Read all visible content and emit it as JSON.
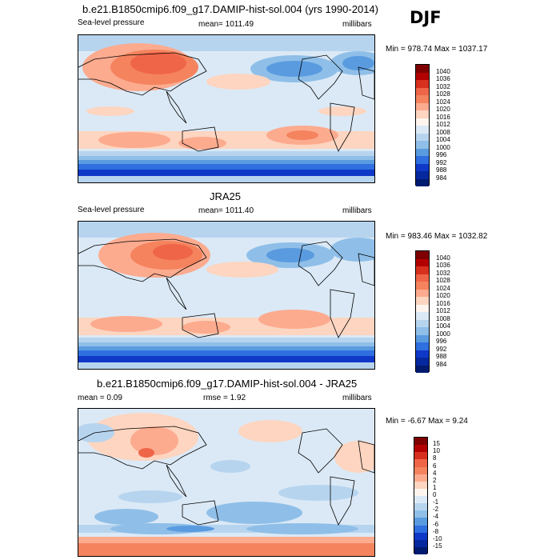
{
  "header": {
    "season": "DJF"
  },
  "panels": [
    {
      "title": "b.e21.B1850cmip6.f09_g17.DAMIP-hist-sol.004 (yrs 1990-2014)",
      "left": "Sea-level pressure",
      "center": "mean= 1011.49",
      "right": "millibars",
      "minmax": "Min = 978.74 Max = 1037.17",
      "colorbar": {
        "labels": [
          "1040",
          "1036",
          "1032",
          "1028",
          "1024",
          "1020",
          "1016",
          "1012",
          "1008",
          "1004",
          "1000",
          "996",
          "992",
          "988",
          "984"
        ],
        "colors": [
          "#7f0000",
          "#b30000",
          "#d7301f",
          "#ef6548",
          "#f4835e",
          "#fcab8f",
          "#fdd5c0",
          "#fff5ee",
          "#dbe9f6",
          "#b7d4ef",
          "#8fbfe8",
          "#5a9be0",
          "#2f6fe0",
          "#1038c8",
          "#06289e",
          "#001a70"
        ]
      }
    },
    {
      "title": "JRA25",
      "left": "Sea-level pressure",
      "center": "mean= 1011.40",
      "right": "millibars",
      "minmax": "Min = 983.46 Max = 1032.82",
      "colorbar": {
        "labels": [
          "1040",
          "1036",
          "1032",
          "1028",
          "1024",
          "1020",
          "1016",
          "1012",
          "1008",
          "1004",
          "1000",
          "996",
          "992",
          "988",
          "984"
        ],
        "colors": [
          "#7f0000",
          "#b30000",
          "#d7301f",
          "#ef6548",
          "#f4835e",
          "#fcab8f",
          "#fdd5c0",
          "#fff5ee",
          "#dbe9f6",
          "#b7d4ef",
          "#8fbfe8",
          "#5a9be0",
          "#2f6fe0",
          "#1038c8",
          "#06289e",
          "#001a70"
        ]
      }
    },
    {
      "title": "b.e21.B1850cmip6.f09_g17.DAMIP-hist-sol.004 - JRA25",
      "left": "mean =   0.09",
      "center": "rmse =   1.92",
      "right": "millibars",
      "minmax": "Min =  -6.67 Max =   9.24",
      "colorbar": {
        "labels": [
          "15",
          "10",
          "8",
          "6",
          "4",
          "2",
          "1",
          "0",
          "-1",
          "-2",
          "-4",
          "-6",
          "-8",
          "-10",
          "-15"
        ],
        "colors": [
          "#7f0000",
          "#b30000",
          "#d7301f",
          "#ef6548",
          "#f4835e",
          "#fcab8f",
          "#fdd5c0",
          "#fff5ee",
          "#dbe9f6",
          "#b7d4ef",
          "#8fbfe8",
          "#5a9be0",
          "#2f6fe0",
          "#1038c8",
          "#06289e",
          "#001a70"
        ]
      }
    }
  ]
}
